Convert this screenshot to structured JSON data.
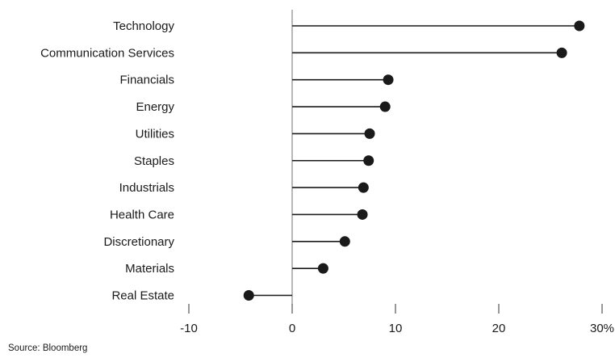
{
  "chart_data": {
    "type": "lollipop",
    "orientation": "horizontal",
    "categories": [
      "Technology",
      "Communication Services",
      "Financials",
      "Energy",
      "Utilities",
      "Staples",
      "Industrials",
      "Health Care",
      "Discretionary",
      "Materials",
      "Real Estate"
    ],
    "values": [
      27.8,
      26.1,
      9.3,
      9.0,
      7.5,
      7.4,
      6.9,
      6.8,
      5.1,
      3.0,
      -4.2
    ],
    "xlim": [
      -10,
      30
    ],
    "xticks": [
      -10,
      0,
      10,
      20,
      30
    ],
    "xtick_labels": [
      "-10",
      "0",
      "10",
      "20",
      "30%"
    ],
    "colors": {
      "marker": "#1a1a1a",
      "stem": "#1a1a1a",
      "zero_line": "#888888"
    }
  },
  "footer": {
    "source": "Source: Bloomberg"
  }
}
